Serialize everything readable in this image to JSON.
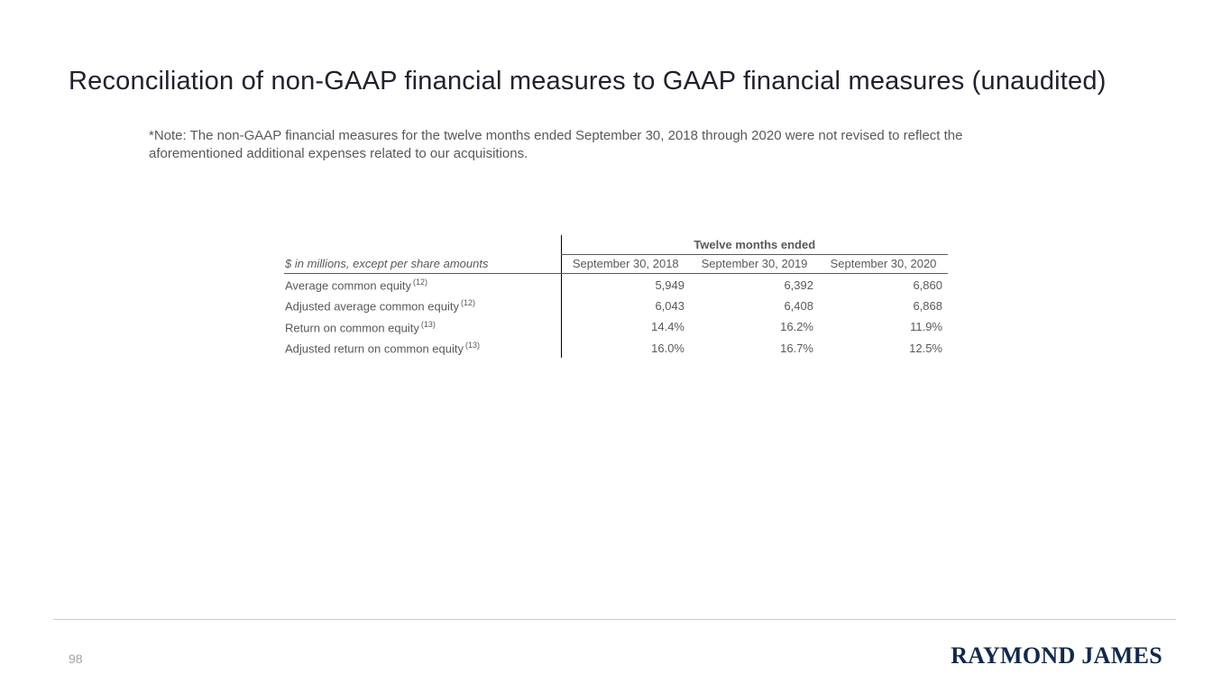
{
  "slide": {
    "title": "Reconciliation of non-GAAP financial measures to GAAP financial measures (unaudited)",
    "note_line": "*Note: The non-GAAP financial measures for the twelve months ended September 30, 2018 through 2020 were not revised to reflect the aforementioned additional expenses related to our acquisitions.",
    "page_number": "98",
    "logo_text": "RAYMOND JAMES"
  },
  "chart_data": {
    "type": "table",
    "span_header": "Twelve months ended",
    "row_header_label": "$ in millions, except per share amounts",
    "columns": [
      "September 30, 2018",
      "September 30, 2019",
      "September 30, 2020"
    ],
    "rows": [
      {
        "label": "Average common equity",
        "sup": "(12)",
        "values": [
          "5,949",
          "6,392",
          "6,860"
        ]
      },
      {
        "label": "Adjusted average common equity",
        "sup": "(12)",
        "values": [
          "6,043",
          "6,408",
          "6,868"
        ]
      },
      {
        "label": "Return on common equity",
        "sup": "(13)",
        "values": [
          "14.4%",
          "16.2%",
          "11.9%"
        ]
      },
      {
        "label": "Adjusted return on common equity",
        "sup": "(13)",
        "values": [
          "16.0%",
          "16.7%",
          "12.5%"
        ]
      }
    ]
  },
  "colors": {
    "title_text": "#21212e",
    "body_text": "#595959",
    "table_line_dark": "#000000",
    "divider_gray": "#cccccc",
    "muted_gray": "#a3a3a3",
    "logo_navy": "#12294b"
  }
}
